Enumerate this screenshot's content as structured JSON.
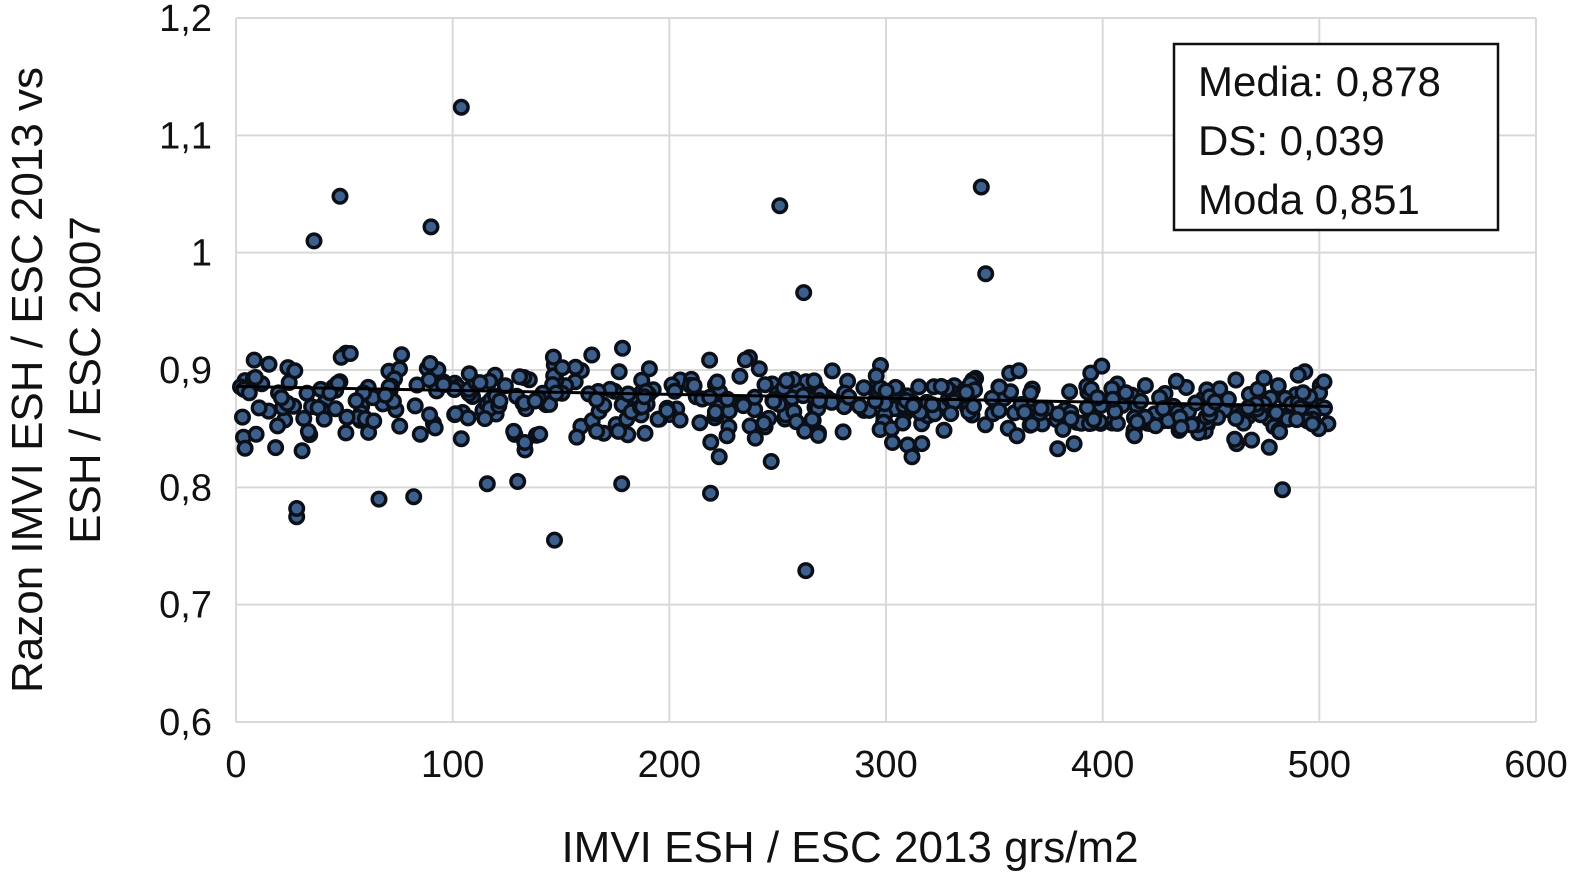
{
  "chart_data": {
    "type": "scatter",
    "title": "",
    "xlabel": "IMVI ESH / ESC 2013 grs/m2",
    "ylabel_lines": [
      "Razon IMVI ESH / ESC 2013 vs",
      "ESH / ESC 2007"
    ],
    "xlim": [
      0,
      600
    ],
    "ylim": [
      0.6,
      1.2
    ],
    "x_ticks": [
      0,
      100,
      200,
      300,
      400,
      500,
      600
    ],
    "x_tick_labels": [
      "0",
      "100",
      "200",
      "300",
      "400",
      "500",
      "600"
    ],
    "y_ticks": [
      0.6,
      0.7,
      0.8,
      0.9,
      1.0,
      1.1,
      1.2
    ],
    "y_tick_labels": [
      "0,6",
      "0,7",
      "0,8",
      "0,9",
      "1",
      "1,1",
      "1,2"
    ],
    "grid": true,
    "stats_box": {
      "position": "top-right",
      "lines": [
        "Media: 0,878",
        "DS: 0,039",
        "Moda 0,851"
      ]
    },
    "trendline": {
      "x": [
        0,
        505
      ],
      "y": [
        0.886,
        0.869
      ]
    },
    "outliers": {
      "x": [
        104,
        48,
        36,
        90,
        251,
        344,
        346,
        262,
        263,
        147,
        28,
        28,
        219,
        483,
        66,
        82,
        130,
        116,
        178,
        223,
        247,
        312
      ],
      "y": [
        1.124,
        1.048,
        1.01,
        1.022,
        1.04,
        1.056,
        0.982,
        0.966,
        0.729,
        0.755,
        0.775,
        0.782,
        0.795,
        0.798,
        0.79,
        0.792,
        0.805,
        0.803,
        0.803,
        0.826,
        0.822,
        0.826
      ]
    },
    "bulk": {
      "x_range": [
        2,
        505
      ],
      "count": 510,
      "y_start_center": 0.875,
      "y_end_center": 0.868,
      "y_spread_near_zero": 0.03,
      "y_spread_near_500": 0.02
    },
    "colors": {
      "point_fill": "#3c5f8c",
      "point_edge": "#0b0f18",
      "trendline": "#000000",
      "grid": "#d9d9d9"
    }
  }
}
